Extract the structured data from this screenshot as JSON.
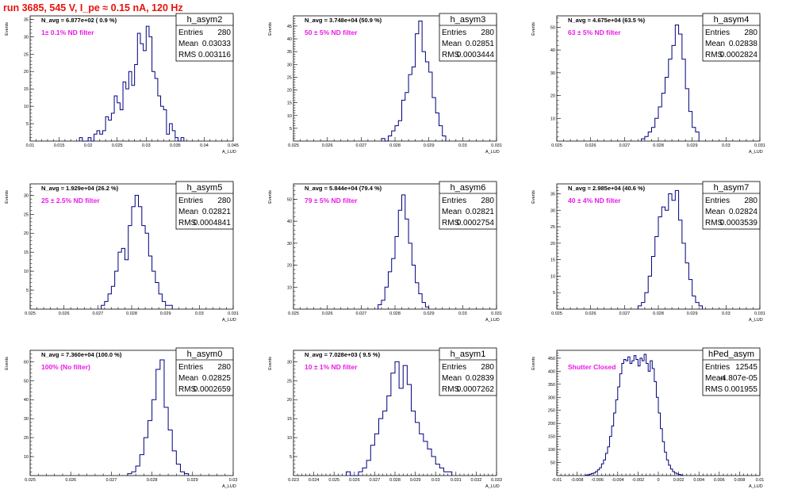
{
  "title": "run 3685,   545 V, I_pe ≈ 0.15 nA, 120 Hz",
  "y_axis_label": "Events",
  "x_axis_label": "A_LUD",
  "stats_labels": {
    "entries": "Entries",
    "mean": "Mean",
    "rms": "RMS"
  },
  "colors": {
    "title": "#e8120c",
    "histogram": "#00007f",
    "annotation": "#e818e8"
  },
  "chart_data": [
    {
      "type": "histogram",
      "name": "h_asym2",
      "navg": "N_avg = 6.877e+02 ( 0.9 %)",
      "filter": "1± 0.1% ND filter",
      "stats": {
        "entries": "280",
        "mean": "0.03033",
        "rms": "0.003116"
      },
      "xlim": [
        0.01,
        0.045
      ],
      "ylim": [
        0,
        36
      ],
      "xticks": [
        "0.01",
        "0.015",
        "0.02",
        "0.025",
        "0.03",
        "0.035",
        "0.04",
        "0.045"
      ],
      "yticks": [
        "5",
        "10",
        "15",
        "20",
        "25",
        "30",
        "35"
      ],
      "bin_start": 0.0185,
      "bin_width": 0.0005,
      "counts": [
        1,
        0,
        0,
        1,
        0,
        2,
        3,
        2,
        3,
        7,
        6,
        8,
        13,
        11,
        9,
        17,
        15,
        20,
        16,
        22,
        31,
        28,
        26,
        33,
        30,
        20,
        18,
        13,
        10,
        9,
        2,
        5,
        3,
        1,
        0,
        1
      ]
    },
    {
      "type": "histogram",
      "name": "h_asym3",
      "navg": "N_avg = 3.748e+04 (50.9 %)",
      "filter": "50 ± 5% ND filter",
      "stats": {
        "entries": "280",
        "mean": "0.02851",
        "rms": "0.0003444"
      },
      "xlim": [
        0.025,
        0.031
      ],
      "ylim": [
        0,
        49
      ],
      "xticks": [
        "0.025",
        "0.026",
        "0.027",
        "0.028",
        "0.029",
        "0.03",
        "0.031"
      ],
      "yticks": [
        "5",
        "10",
        "15",
        "20",
        "25",
        "30",
        "35",
        "40",
        "45"
      ],
      "bin_start": 0.0276,
      "bin_width": 0.0001,
      "counts": [
        1,
        0,
        2,
        4,
        6,
        8,
        16,
        19,
        26,
        29,
        42,
        47,
        35,
        31,
        27,
        17,
        11,
        6,
        2
      ]
    },
    {
      "type": "histogram",
      "name": "h_asym4",
      "navg": "N_avg = 4.675e+04 (63.5 %)",
      "filter": "63 ± 5% ND filter",
      "stats": {
        "entries": "280",
        "mean": "0.02838",
        "rms": "0.0002824"
      },
      "xlim": [
        0.025,
        0.031
      ],
      "ylim": [
        0,
        55
      ],
      "xticks": [
        "0.025",
        "0.026",
        "0.027",
        "0.028",
        "0.029",
        "0.03",
        "0.031"
      ],
      "yticks": [
        "10",
        "20",
        "30",
        "40",
        "50"
      ],
      "bin_start": 0.0275,
      "bin_width": 0.0001,
      "counts": [
        1,
        2,
        4,
        6,
        10,
        15,
        21,
        28,
        36,
        42,
        51,
        47,
        36,
        23,
        13,
        6,
        4
      ]
    },
    {
      "type": "histogram",
      "name": "h_asym5",
      "navg": "N_avg = 1.929e+04 (26.2 %)",
      "filter": "25 ± 2.5% ND filter",
      "stats": {
        "entries": "280",
        "mean": "0.02821",
        "rms": "0.0004841"
      },
      "xlim": [
        0.025,
        0.031
      ],
      "ylim": [
        0,
        33
      ],
      "xticks": [
        "0.025",
        "0.026",
        "0.027",
        "0.028",
        "0.029",
        "0.03",
        "0.031"
      ],
      "yticks": [
        "5",
        "10",
        "15",
        "20",
        "25",
        "30"
      ],
      "bin_start": 0.0271,
      "bin_width": 0.0001,
      "counts": [
        1,
        2,
        4,
        6,
        10,
        15,
        16,
        13,
        22,
        27,
        30,
        27,
        22,
        20,
        14,
        10,
        7,
        4,
        2,
        1,
        1
      ]
    },
    {
      "type": "histogram",
      "name": "h_asym6",
      "navg": "N_avg = 5.844e+04 (79.4 %)",
      "filter": "79 ± 5% ND filter",
      "stats": {
        "entries": "280",
        "mean": "0.02821",
        "rms": "0.0002754"
      },
      "xlim": [
        0.025,
        0.031
      ],
      "ylim": [
        0,
        57
      ],
      "xticks": [
        "0.025",
        "0.026",
        "0.027",
        "0.028",
        "0.029",
        "0.03",
        "0.031"
      ],
      "yticks": [
        "10",
        "20",
        "30",
        "40",
        "50"
      ],
      "bin_start": 0.0275,
      "bin_width": 0.0001,
      "counts": [
        2,
        4,
        10,
        17,
        23,
        33,
        45,
        52,
        41,
        30,
        20,
        12,
        7,
        3,
        1
      ]
    },
    {
      "type": "histogram",
      "name": "h_asym7",
      "navg": "N_avg = 2.985e+04 (40.6 %)",
      "filter": "40 ± 4% ND filter",
      "stats": {
        "entries": "280",
        "mean": "0.02824",
        "rms": "0.0003539"
      },
      "xlim": [
        0.025,
        0.031
      ],
      "ylim": [
        0,
        38
      ],
      "xticks": [
        "0.025",
        "0.026",
        "0.027",
        "0.028",
        "0.029",
        "0.03",
        "0.031"
      ],
      "yticks": [
        "5",
        "10",
        "15",
        "20",
        "25",
        "30",
        "35"
      ],
      "bin_start": 0.0274,
      "bin_width": 0.0001,
      "counts": [
        1,
        2,
        5,
        10,
        16,
        22,
        28,
        31,
        30,
        35,
        33,
        36,
        27,
        20,
        14,
        9,
        4,
        2,
        1
      ]
    },
    {
      "type": "histogram",
      "name": "h_asym0",
      "navg": "N_avg = 7.360e+04 (100.0 %)",
      "filter": "100% (No filter)",
      "stats": {
        "entries": "280",
        "mean": "0.02825",
        "rms": "0.0002659"
      },
      "xlim": [
        0.025,
        0.03
      ],
      "ylim": [
        0,
        66
      ],
      "xticks": [
        "0.025",
        "0.026",
        "0.027",
        "0.028",
        "0.029",
        "0.03"
      ],
      "yticks": [
        "10",
        "20",
        "30",
        "40",
        "50",
        "60"
      ],
      "bin_start": 0.0274,
      "bin_width": 0.0001,
      "counts": [
        1,
        2,
        5,
        11,
        20,
        29,
        40,
        56,
        61,
        36,
        24,
        13,
        6,
        2,
        1
      ]
    },
    {
      "type": "histogram",
      "name": "h_asym1",
      "navg": "N_avg = 7.028e+03 ( 9.5 %)",
      "filter": "10 ± 1% ND filter",
      "stats": {
        "entries": "280",
        "mean": "0.02839",
        "rms": "0.0007262"
      },
      "xlim": [
        0.023,
        0.033
      ],
      "ylim": [
        0,
        33
      ],
      "xticks": [
        "0.023",
        "0.024",
        "0.025",
        "0.026",
        "0.027",
        "0.028",
        "0.029",
        "0.03",
        "0.031",
        "0.032",
        "0.033"
      ],
      "yticks": [
        "5",
        "10",
        "15",
        "20",
        "25",
        "30"
      ],
      "bin_start": 0.0256,
      "bin_width": 0.0002,
      "counts": [
        1,
        0,
        0,
        1,
        2,
        4,
        8,
        11,
        15,
        17,
        21,
        27,
        30,
        23,
        29,
        24,
        17,
        14,
        11,
        9,
        7,
        5,
        3,
        2,
        1,
        1
      ]
    },
    {
      "type": "histogram",
      "name": "hPed_asym",
      "navg": "",
      "filter": "Shutter Closed",
      "stats": {
        "entries": "12545",
        "mean": "-4.807e-05",
        "rms": "0.001955"
      },
      "xlim": [
        -0.01,
        0.01
      ],
      "ylim": [
        0,
        480
      ],
      "xticks": [
        "-0.01",
        "-0.008",
        "-0.006",
        "-0.004",
        "-0.002",
        "0",
        "0.002",
        "0.004",
        "0.006",
        "0.008",
        "0.01"
      ],
      "yticks": [
        "50",
        "100",
        "150",
        "200",
        "250",
        "300",
        "350",
        "400",
        "450"
      ],
      "bin_start": -0.0072,
      "bin_width": 0.0002,
      "counts": [
        2,
        3,
        5,
        8,
        10,
        15,
        22,
        30,
        45,
        60,
        85,
        110,
        150,
        190,
        240,
        290,
        340,
        390,
        430,
        445,
        440,
        455,
        430,
        440,
        460,
        445,
        420,
        450,
        440,
        465,
        430,
        400,
        440,
        410,
        360,
        300,
        240,
        180,
        130,
        90,
        60,
        40,
        25,
        15,
        10,
        6,
        4,
        2
      ]
    }
  ]
}
